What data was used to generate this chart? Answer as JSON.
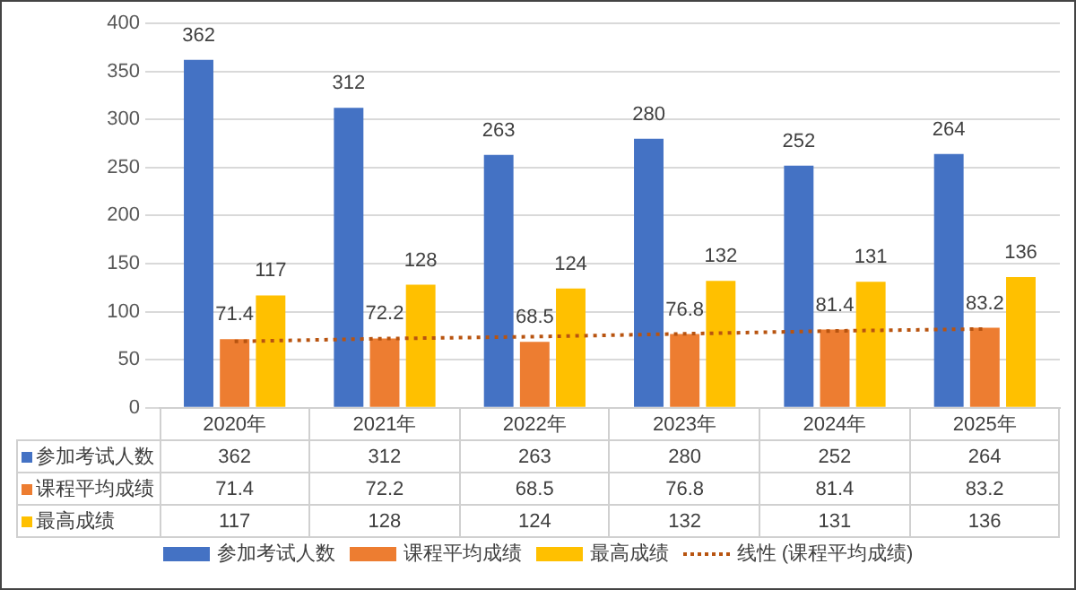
{
  "chart_data": {
    "type": "bar",
    "categories": [
      "2020年",
      "2021年",
      "2022年",
      "2023年",
      "2024年",
      "2025年"
    ],
    "series": [
      {
        "name": "参加考试人数",
        "color": "#4472c4",
        "values": [
          362,
          312,
          263,
          280,
          252,
          264
        ],
        "value_labels": [
          "362",
          "312",
          "263",
          "280",
          "252",
          "264"
        ]
      },
      {
        "name": "课程平均成绩",
        "color": "#ed7d31",
        "values": [
          71.4,
          72.2,
          68.5,
          76.8,
          81.4,
          83.2
        ],
        "value_labels": [
          "71.4",
          "72.2",
          "68.5",
          "76.8",
          "81.4",
          "83.2"
        ]
      },
      {
        "name": "最高成绩",
        "color": "#ffc000",
        "values": [
          117,
          128,
          124,
          132,
          131,
          136
        ],
        "value_labels": [
          "117",
          "128",
          "124",
          "132",
          "131",
          "136"
        ]
      },
      {
        "name": "线性 (课程平均成绩)",
        "type": "line",
        "color": "#b85410",
        "line_style": "dotted",
        "marker": "none",
        "values": [
          69,
          72,
          74,
          77,
          80,
          82
        ]
      }
    ],
    "ylim": [
      0,
      400
    ],
    "yticks": [
      0,
      50,
      100,
      150,
      200,
      250,
      300,
      350,
      400
    ],
    "grid": "y",
    "legend": "bottom"
  }
}
